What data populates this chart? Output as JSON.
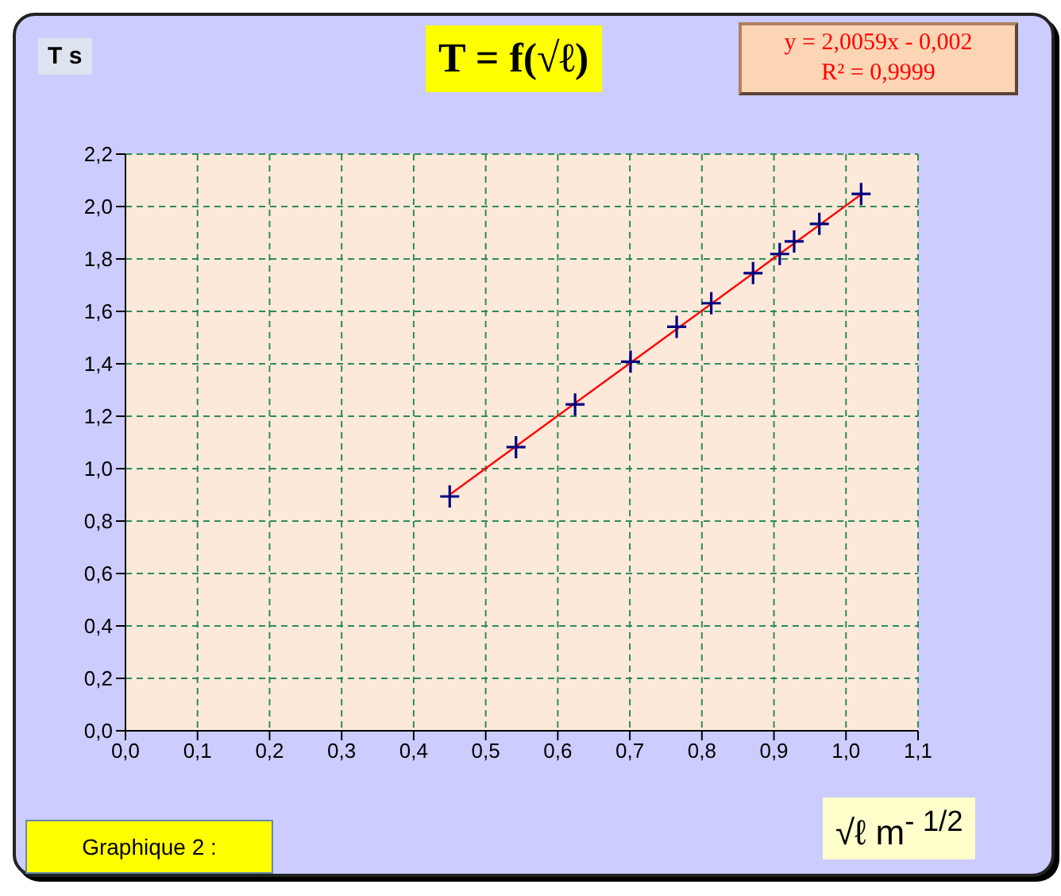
{
  "chart_data": {
    "type": "scatter",
    "title": "T = f(√ℓ)",
    "ylabel": "T s",
    "xlabel": "√ℓ m$^{- 1/2}$",
    "annotations": [
      "y = 2,0059x - 0,002",
      "R² = 0,9999",
      "Graphique 2 :"
    ],
    "series": [
      {
        "color": "#000080",
        "marker": "cross",
        "x": [
          0.45,
          0.542,
          0.624,
          0.701,
          0.765,
          0.813,
          0.871,
          0.908,
          0.928,
          0.963,
          1.021
        ],
        "values": [
          0.894,
          1.082,
          1.245,
          1.408,
          1.541,
          1.631,
          1.746,
          1.819,
          1.867,
          1.934,
          2.048
        ]
      },
      {
        "type": "line",
        "color": "#ff0000",
        "marker": "none",
        "x": [
          0.45,
          1.021
        ],
        "values": [
          0.901,
          2.046
        ]
      }
    ],
    "xlim": [
      0,
      1.1
    ],
    "xticks": [
      {
        "value": 0,
        "label": "0,0"
      },
      {
        "value": 0.1,
        "label": "0,1"
      },
      {
        "value": 0.2,
        "label": "0,2"
      },
      {
        "value": 0.3,
        "label": "0,3"
      },
      {
        "value": 0.4,
        "label": "0,4"
      },
      {
        "value": 0.5,
        "label": "0,5"
      },
      {
        "value": 0.6,
        "label": "0,6"
      },
      {
        "value": 0.7,
        "label": "0,7"
      },
      {
        "value": 0.8,
        "label": "0,8"
      },
      {
        "value": 0.9,
        "label": "0,9"
      },
      {
        "value": 1,
        "label": "1,0"
      },
      {
        "value": 1.1,
        "label": "1,1"
      }
    ],
    "ylim": [
      0,
      2.2
    ],
    "yticks": [
      {
        "value": 0,
        "label": "0,0"
      },
      {
        "value": 0.2,
        "label": "0,2"
      },
      {
        "value": 0.4,
        "label": "0,4"
      },
      {
        "value": 0.6,
        "label": "0,6"
      },
      {
        "value": 0.8,
        "label": "0,8"
      },
      {
        "value": 1,
        "label": "1,0"
      },
      {
        "value": 1.2,
        "label": "1,2"
      },
      {
        "value": 1.4,
        "label": "1,4"
      },
      {
        "value": 1.6,
        "label": "1,6"
      },
      {
        "value": 1.8,
        "label": "1,8"
      },
      {
        "value": 2,
        "label": "2,0"
      },
      {
        "value": 2.2,
        "label": "2,2"
      }
    ],
    "grid": true,
    "line_style": "solid"
  }
}
